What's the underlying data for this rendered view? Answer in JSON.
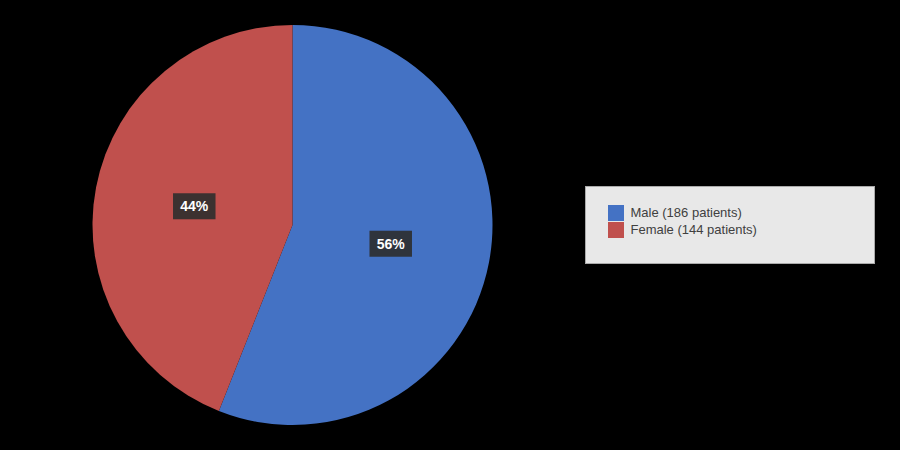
{
  "chart_data": {
    "type": "pie",
    "categories": [
      "Male (186 patients)",
      "Female (144 patients)"
    ],
    "values": [
      56,
      44
    ],
    "value_labels": [
      "56%",
      "44%"
    ],
    "colors": [
      "#4472C4",
      "#C0504D"
    ],
    "data_labels": true,
    "legend": "right"
  }
}
